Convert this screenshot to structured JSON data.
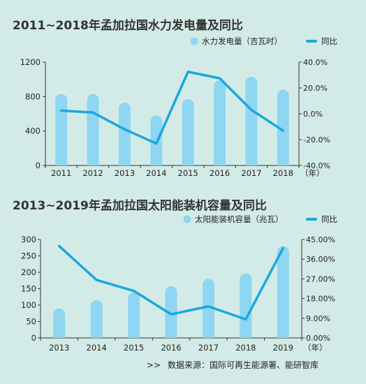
{
  "chart_data": [
    {
      "type": "bar+line",
      "title": "2011~2018年孟加拉国水力发电量及同比",
      "x_unit": "（年）",
      "categories": [
        "2011",
        "2012",
        "2013",
        "2014",
        "2015",
        "2016",
        "2017",
        "2018"
      ],
      "series": [
        {
          "name": "水力发电量（吉瓦时）",
          "type": "bar",
          "axis": "left",
          "values": [
            830,
            830,
            730,
            580,
            770,
            990,
            1030,
            880
          ]
        },
        {
          "name": "同比",
          "type": "line",
          "axis": "right",
          "values": [
            2.5,
            1.0,
            -12.0,
            -23.0,
            32.5,
            27.5,
            3.0,
            -13.0
          ]
        }
      ],
      "ylim_left": [
        0,
        1200
      ],
      "yticks_left": [
        "0",
        "400",
        "800",
        "1200"
      ],
      "ylim_right": [
        -40,
        40
      ],
      "yticks_right": [
        "-40.0%",
        "-20.0%",
        "0.0%",
        "20.0%",
        "40.0%"
      ],
      "colors": {
        "bar": "#8fd6f2",
        "line": "#1aa7e0"
      },
      "legend": "top-right"
    },
    {
      "type": "bar+line",
      "title": "2013~2019年孟加拉国太阳能装机容量及同比",
      "x_unit": "（年）",
      "categories": [
        "2013",
        "2014",
        "2015",
        "2016",
        "2017",
        "2018",
        "2019"
      ],
      "series": [
        {
          "name": "太阳能装机容量（兆瓦）",
          "type": "bar",
          "axis": "left",
          "values": [
            90,
            115,
            138,
            158,
            180,
            197,
            280
          ]
        },
        {
          "name": "同比",
          "type": "line",
          "axis": "right",
          "values": [
            42.0,
            26.5,
            21.5,
            10.8,
            14.4,
            8.5,
            41.0
          ]
        }
      ],
      "ylim_left": [
        0,
        300
      ],
      "yticks_left": [
        "0",
        "50",
        "100",
        "150",
        "200",
        "250",
        "300"
      ],
      "ylim_right": [
        0,
        45
      ],
      "yticks_right": [
        "0.00%",
        "9.00%",
        "18.00%",
        "27.00%",
        "36.00%",
        "45.00%"
      ],
      "colors": {
        "bar": "#8fd6f2",
        "line": "#1aa7e0"
      },
      "legend": "top-right"
    }
  ],
  "source": {
    "arrow": ">>",
    "text": "数据来源：国际可再生能源署、能研智库"
  }
}
